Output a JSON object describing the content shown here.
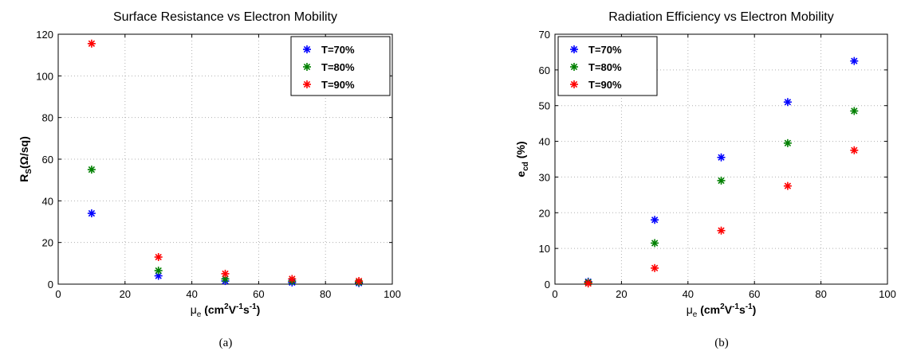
{
  "chart_data": [
    {
      "type": "scatter",
      "title": "Surface Resistance vs Electron Mobility",
      "xlabel": {
        "symbol": "μ",
        "sub": "e",
        "units_main": "cm",
        "sup1": "2",
        "mid": "V",
        "sup2": "-1",
        "tail": "s",
        "sup3": "-1"
      },
      "ylabel": {
        "main": "R",
        "sub": "S",
        "rest": "(Ω/sq)"
      },
      "xlim": [
        0,
        100
      ],
      "ylim": [
        0,
        120
      ],
      "xticks": [
        0,
        20,
        40,
        60,
        80,
        100
      ],
      "yticks": [
        0,
        20,
        40,
        60,
        80,
        100,
        120
      ],
      "grid": true,
      "legend_position": "top-right",
      "caption": "(a)",
      "marker": "*",
      "x": [
        10,
        30,
        50,
        70,
        90
      ],
      "series": [
        {
          "name": "T=70%",
          "color": "#0000ff",
          "values": [
            34,
            4,
            1.5,
            0.8,
            0.5
          ]
        },
        {
          "name": "T=80%",
          "color": "#008000",
          "values": [
            55,
            6.5,
            2.5,
            1.5,
            0.9
          ]
        },
        {
          "name": "T=90%",
          "color": "#ff0000",
          "values": [
            115.5,
            13,
            5,
            2.5,
            1.5
          ]
        }
      ]
    },
    {
      "type": "scatter",
      "title": "Radiation Efficiency vs Electron Mobility",
      "xlabel": {
        "symbol": "μ",
        "sub": "e",
        "units_main": "cm",
        "sup1": "2",
        "mid": "V",
        "sup2": "-1",
        "tail": "s",
        "sup3": "-1"
      },
      "ylabel": {
        "main": "e",
        "sub": "cd",
        "rest": " (%)"
      },
      "xlim": [
        0,
        100
      ],
      "ylim": [
        0,
        70
      ],
      "xticks": [
        0,
        20,
        40,
        60,
        80,
        100
      ],
      "yticks": [
        0,
        10,
        20,
        30,
        40,
        50,
        60,
        70
      ],
      "grid": true,
      "legend_position": "top-left",
      "caption": "(b)",
      "marker": "*",
      "x": [
        10,
        30,
        50,
        70,
        90
      ],
      "series": [
        {
          "name": "T=70%",
          "color": "#0000ff",
          "values": [
            0.7,
            18,
            35.5,
            51,
            62.5
          ]
        },
        {
          "name": "T=80%",
          "color": "#008000",
          "values": [
            0.5,
            11.5,
            29,
            39.5,
            48.5
          ]
        },
        {
          "name": "T=90%",
          "color": "#ff0000",
          "values": [
            0.2,
            4.5,
            15,
            27.5,
            37.5
          ]
        }
      ]
    }
  ]
}
